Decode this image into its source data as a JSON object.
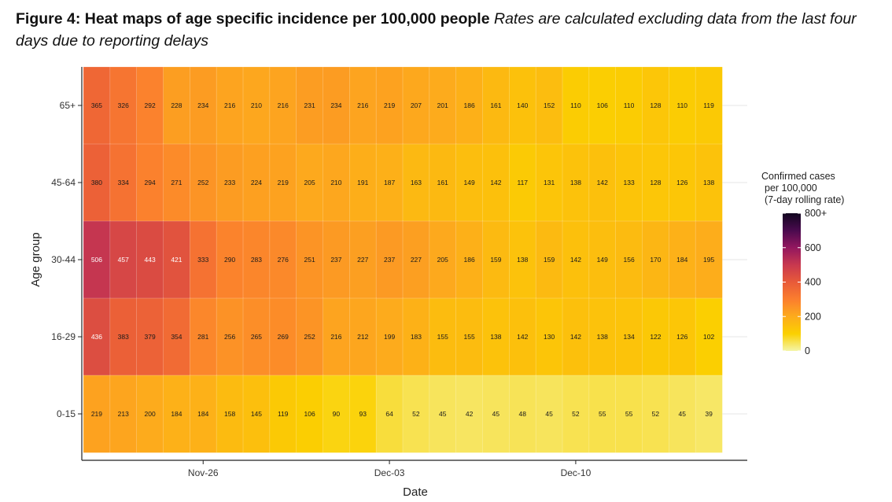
{
  "caption": {
    "bold": "Figure 4: Heat maps of age specific incidence per 100,000 people",
    "italic": "Rates are calculated excluding data from the last four days due to reporting delays"
  },
  "chart_data": {
    "type": "heatmap",
    "xlabel": "Date",
    "ylabel": "Age group",
    "x_tick_labels": [
      "Nov-26",
      "Dec-03",
      "Dec-10"
    ],
    "x_tick_columns": [
      4,
      11,
      18
    ],
    "rows": [
      "65+",
      "45-64",
      "30-44",
      "16-29",
      "0-15"
    ],
    "values": [
      [
        365,
        326,
        292,
        228,
        234,
        216,
        210,
        216,
        231,
        234,
        216,
        219,
        207,
        201,
        186,
        161,
        140,
        152,
        110,
        106,
        110,
        128,
        110,
        119
      ],
      [
        380,
        334,
        294,
        271,
        252,
        233,
        224,
        219,
        205,
        210,
        191,
        187,
        163,
        161,
        149,
        142,
        117,
        131,
        138,
        142,
        133,
        128,
        126,
        138
      ],
      [
        506,
        457,
        443,
        421,
        333,
        290,
        283,
        276,
        251,
        237,
        227,
        237,
        227,
        205,
        186,
        159,
        138,
        159,
        142,
        149,
        156,
        170,
        184,
        195
      ],
      [
        436,
        383,
        379,
        354,
        281,
        256,
        265,
        269,
        252,
        216,
        212,
        199,
        183,
        155,
        155,
        138,
        142,
        130,
        142,
        138,
        134,
        122,
        126,
        102
      ],
      [
        219,
        213,
        200,
        184,
        184,
        158,
        145,
        119,
        106,
        90,
        93,
        64,
        52,
        45,
        42,
        45,
        48,
        45,
        52,
        55,
        55,
        52,
        45,
        39
      ]
    ],
    "legend": {
      "title_lines": [
        "Confirmed cases",
        "per 100,000",
        "(7-day rolling rate)"
      ],
      "ticks": [
        "800+",
        "600",
        "400",
        "200",
        "0"
      ],
      "tick_values": [
        800,
        600,
        400,
        200,
        0
      ],
      "position": "right"
    },
    "color_scale": [
      "#f4f5a8",
      "#fbd000",
      "#fdab1c",
      "#fb7e2e",
      "#e85a39",
      "#c8384f",
      "#93175f",
      "#4a0a4e",
      "#120720"
    ]
  }
}
